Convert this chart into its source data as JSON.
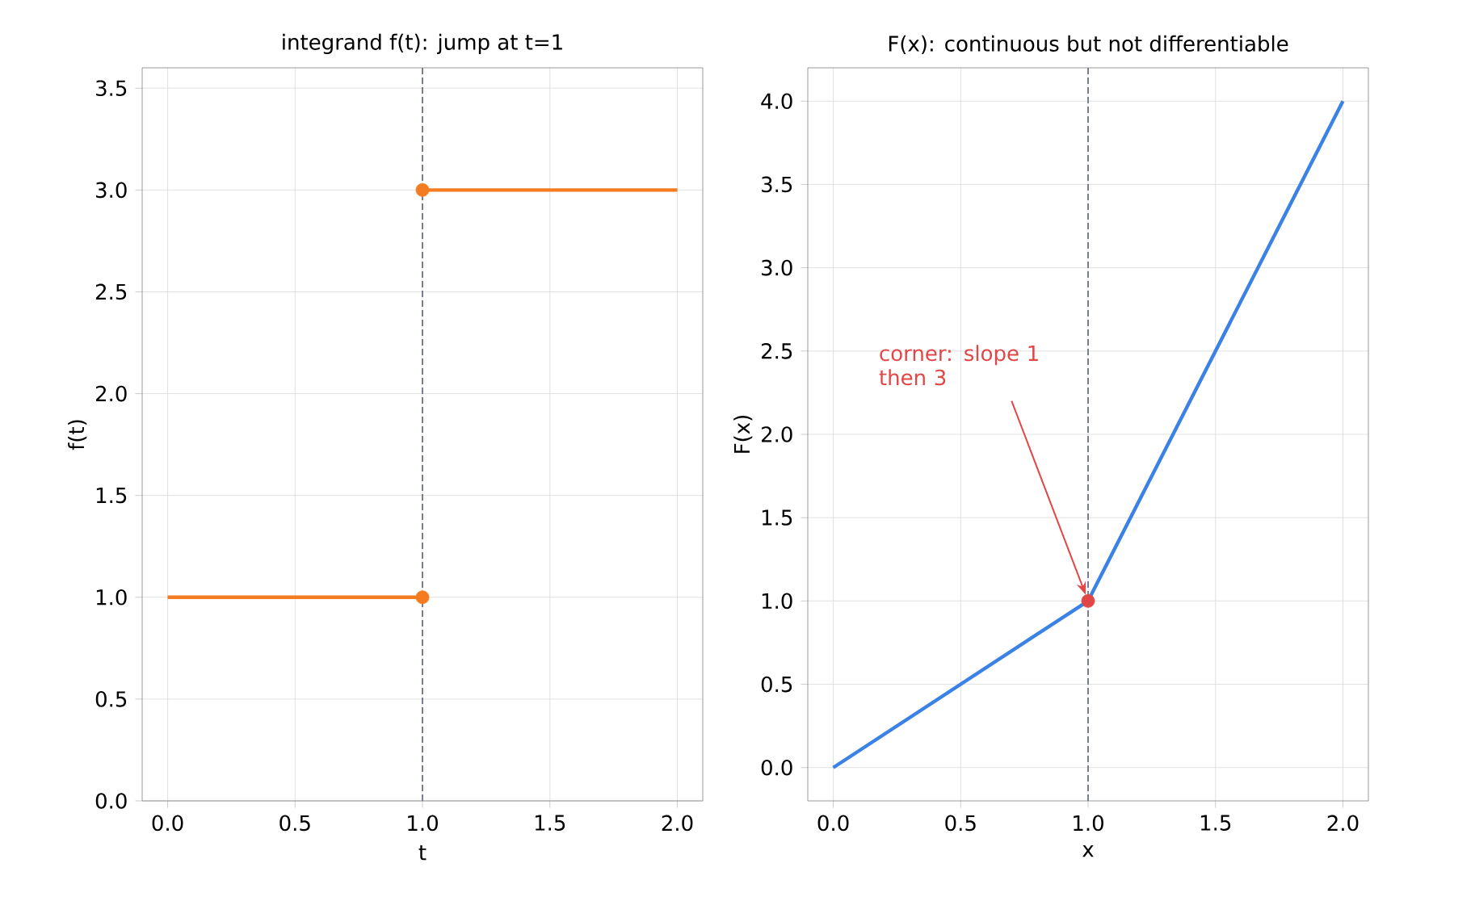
{
  "chart_data": [
    {
      "type": "line",
      "title": "integrand f(t): jump at t=1",
      "xlabel": "t",
      "ylabel": "f(t)",
      "xlim": [
        -0.1,
        2.1
      ],
      "ylim": [
        0,
        3.6
      ],
      "xticks": [
        {
          "value": 0,
          "label": "0.0"
        },
        {
          "value": 0.5,
          "label": "0.5"
        },
        {
          "value": 1,
          "label": "1.0"
        },
        {
          "value": 1.5,
          "label": "1.5"
        },
        {
          "value": 2,
          "label": "2.0"
        }
      ],
      "yticks": [
        {
          "value": 0,
          "label": "0.0"
        },
        {
          "value": 0.5,
          "label": "0.5"
        },
        {
          "value": 1,
          "label": "1.0"
        },
        {
          "value": 1.5,
          "label": "1.5"
        },
        {
          "value": 2,
          "label": "2.0"
        },
        {
          "value": 2.5,
          "label": "2.5"
        },
        {
          "value": 3,
          "label": "3.0"
        },
        {
          "value": 3.5,
          "label": "3.5"
        }
      ],
      "grid": true,
      "ref_lines": [
        {
          "axis": "x",
          "value": 1,
          "color": "#6b7280",
          "line_style": "dashed"
        }
      ],
      "series": [
        {
          "color": "#f47b20",
          "x": [
            0,
            1
          ],
          "values": [
            1,
            1
          ]
        },
        {
          "color": "#f47b20",
          "x": [
            1,
            2
          ],
          "values": [
            3,
            3
          ]
        },
        {
          "type": "scatter",
          "color": "#f47b20",
          "marker": "circle",
          "x": [
            1,
            1
          ],
          "values": [
            3,
            1
          ]
        }
      ]
    },
    {
      "type": "line",
      "title": "F(x): continuous but not differentiable",
      "xlabel": "x",
      "ylabel": "F(x)",
      "xlim": [
        -0.1,
        2.1
      ],
      "ylim": [
        -0.2,
        4.2
      ],
      "xticks": [
        {
          "value": 0,
          "label": "0.0"
        },
        {
          "value": 0.5,
          "label": "0.5"
        },
        {
          "value": 1,
          "label": "1.0"
        },
        {
          "value": 1.5,
          "label": "1.5"
        },
        {
          "value": 2,
          "label": "2.0"
        }
      ],
      "yticks": [
        {
          "value": 0,
          "label": "0.0"
        },
        {
          "value": 0.5,
          "label": "0.5"
        },
        {
          "value": 1,
          "label": "1.0"
        },
        {
          "value": 1.5,
          "label": "1.5"
        },
        {
          "value": 2,
          "label": "2.0"
        },
        {
          "value": 2.5,
          "label": "2.5"
        },
        {
          "value": 3,
          "label": "3.0"
        },
        {
          "value": 3.5,
          "label": "3.5"
        },
        {
          "value": 4,
          "label": "4.0"
        }
      ],
      "grid": true,
      "ref_lines": [
        {
          "axis": "x",
          "value": 1,
          "color": "#6b7280",
          "line_style": "dashed"
        }
      ],
      "annotations": [
        {
          "text": "corner: slope 1 then 3",
          "x": 1,
          "y": 1
        }
      ],
      "series": [
        {
          "color": "#3b82e6",
          "x": [
            0,
            1,
            2
          ],
          "values": [
            0,
            1,
            4
          ]
        },
        {
          "type": "scatter",
          "color": "#e04848",
          "marker": "circle",
          "x": [
            1
          ],
          "values": [
            1
          ]
        }
      ]
    }
  ]
}
